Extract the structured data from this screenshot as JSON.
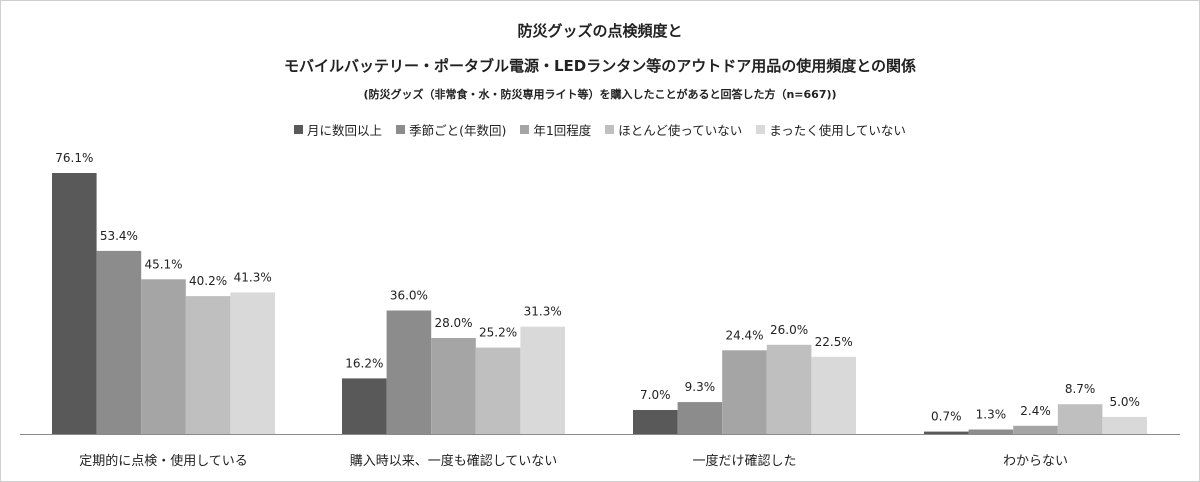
{
  "titles": {
    "line1": "防災グッズの点検頻度と",
    "line2": "モバイルバッテリー・ポータブル電源・LEDランタン等のアウトドア用品の使用頻度との関係",
    "line3": "(防災グッズ（非常食・水・防災専用ライト等）を購入したことがあると回答した方（n=667))"
  },
  "chart_data": {
    "type": "bar",
    "categories": [
      "定期的に点検・使用している",
      "購入時以来、一度も確認していない",
      "一度だけ確認した",
      "わからない"
    ],
    "series": [
      {
        "name": "月に数回以上",
        "color": "#595959",
        "values": [
          76.1,
          16.2,
          7.0,
          0.7
        ],
        "labels": [
          "76.1%",
          "16.2%",
          "7.0%",
          "0.7%"
        ]
      },
      {
        "name": "季節ごと(年数回)",
        "color": "#8c8c8c",
        "values": [
          53.4,
          36.0,
          9.3,
          1.3
        ],
        "labels": [
          "53.4%",
          "36.0%",
          "9.3%",
          "1.3%"
        ]
      },
      {
        "name": "年1回程度",
        "color": "#a5a5a5",
        "values": [
          45.1,
          28.0,
          24.4,
          2.4
        ],
        "labels": [
          "45.1%",
          "28.0%",
          "24.4%",
          "2.4%"
        ]
      },
      {
        "name": "ほとんど使っていない",
        "color": "#bfbfbf",
        "values": [
          40.2,
          25.2,
          26.0,
          8.7
        ],
        "labels": [
          "40.2%",
          "25.2%",
          "26.0%",
          "8.7%"
        ]
      },
      {
        "name": "まったく使用していない",
        "color": "#d9d9d9",
        "values": [
          41.3,
          31.3,
          22.5,
          5.0
        ],
        "labels": [
          "41.3%",
          "31.3%",
          "22.5%",
          "5.0%"
        ]
      }
    ],
    "ylim": [
      0,
      76.1
    ],
    "grid": false,
    "legend_position": "top"
  }
}
